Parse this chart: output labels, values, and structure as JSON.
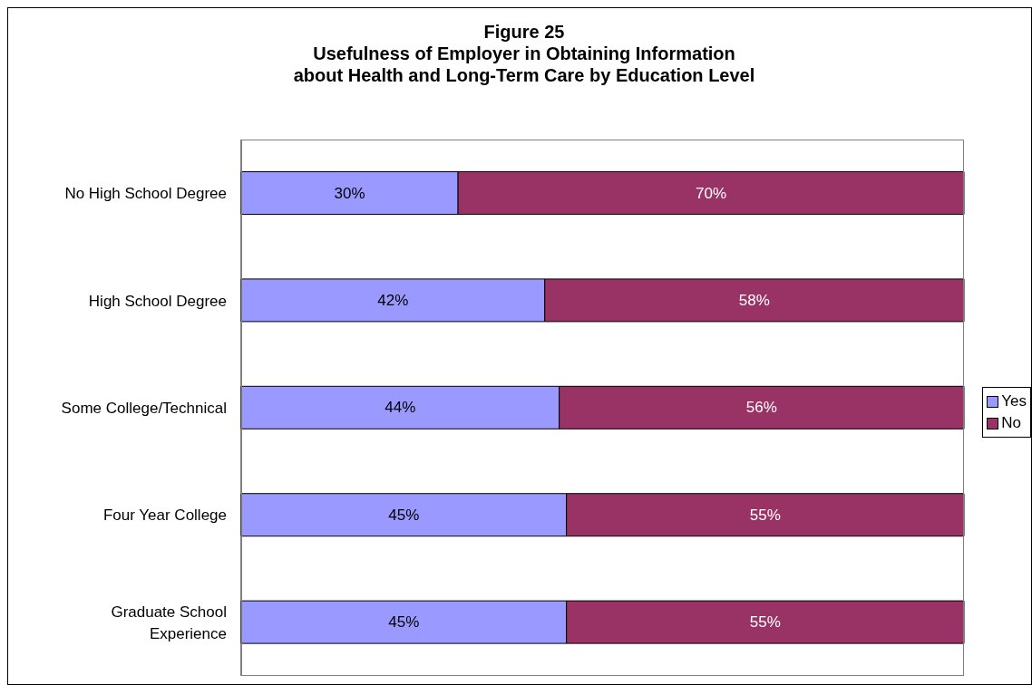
{
  "chart_data": {
    "type": "bar",
    "orientation": "horizontal",
    "stacked": true,
    "title": "Figure 25\nUsefulness of Employer in Obtaining Information\nabout Health and Long-Term Care by Education Level",
    "categories": [
      "No High School Degree",
      "High School Degree",
      "Some College/Technical",
      "Four Year College",
      "Graduate School Experience"
    ],
    "series": [
      {
        "name": "Yes",
        "color": "#9999ff",
        "values": [
          30,
          42,
          44,
          45,
          45
        ],
        "value_labels": [
          "30%",
          "42%",
          "44%",
          "45%",
          "45%"
        ]
      },
      {
        "name": "No",
        "color": "#993366",
        "values": [
          70,
          58,
          56,
          55,
          55
        ],
        "value_labels": [
          "70%",
          "58%",
          "56%",
          "55%",
          "55%"
        ]
      }
    ],
    "legend": "right",
    "grid": false
  }
}
